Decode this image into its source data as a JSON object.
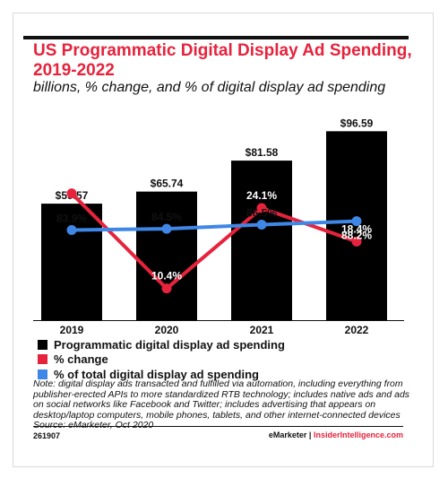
{
  "header": {
    "title": "US Programmatic Digital Display Ad Spending, 2019-2022",
    "subtitle": "billions, % change, and % of digital display ad spending"
  },
  "chart_data": {
    "type": "bar",
    "categories": [
      "2019",
      "2020",
      "2021",
      "2022"
    ],
    "bar_series": {
      "name": "Programmatic digital display ad spending",
      "values": [
        59.57,
        65.74,
        81.58,
        96.59
      ],
      "labels": [
        "$59.57",
        "$65.74",
        "$81.58",
        "$96.59"
      ],
      "color": "#000000",
      "ylim": [
        0,
        105
      ]
    },
    "line_series": [
      {
        "name": "% change",
        "values": [
          26.6,
          10.4,
          24.1,
          18.4
        ],
        "labels": [
          "26.6%",
          "10.4%",
          "24.1%",
          "18.4%"
        ],
        "color": "#e6233c",
        "ylim": [
          5,
          40
        ]
      },
      {
        "name": "% of total digital display ad spending",
        "values": [
          83.9,
          84.5,
          86.5,
          88.2
        ],
        "labels": [
          "83.9%",
          "84.5%",
          "86.5%",
          "88.2%"
        ],
        "color": "#3f87e6",
        "ylim": [
          40,
          140
        ]
      }
    ],
    "grid": false,
    "legend_placement": "bottom-left"
  },
  "legend": {
    "items": [
      {
        "label": "Programmatic digital display ad spending",
        "color": "#000000"
      },
      {
        "label": "% change",
        "color": "#e6233c"
      },
      {
        "label": "% of total digital display ad spending",
        "color": "#3f87e6"
      }
    ]
  },
  "note": "Note: digital display ads transacted and fulfilled via automation, including everything from publisher-erected APIs to more standardized RTB technology; includes native ads and ads on social networks like Facebook and Twitter; includes advertising that appears on desktop/laptop computers, mobile phones, tablets, and other internet-connected devices",
  "source": "Source: eMarketer, Oct 2020",
  "footer": {
    "chart_id": "261907",
    "brand": "eMarketer",
    "separator": "|",
    "site": "InsiderIntelligence.com"
  }
}
